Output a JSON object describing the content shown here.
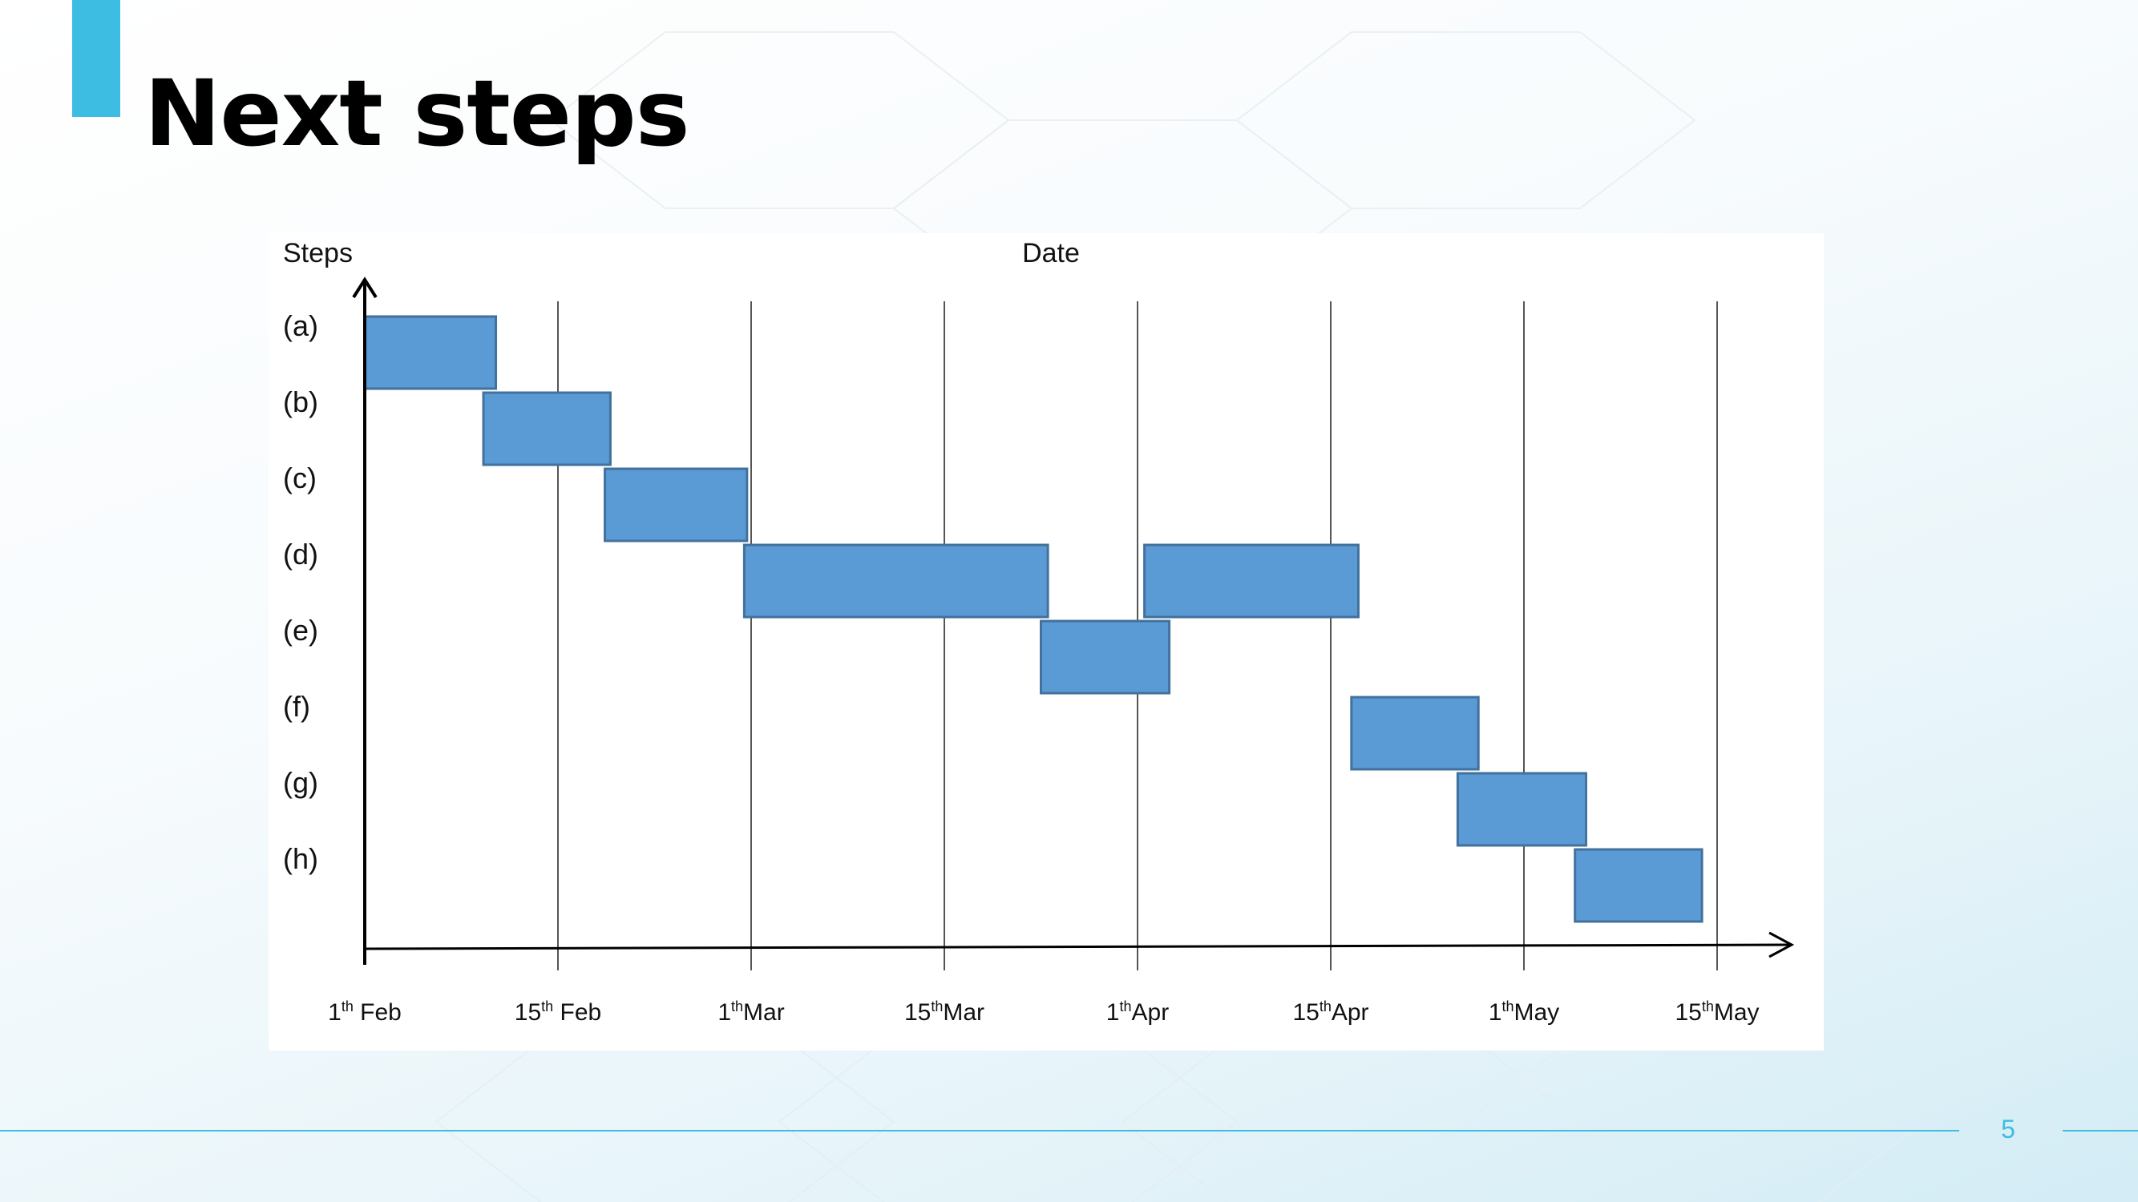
{
  "slide": {
    "title": "Next steps",
    "page_number": "5",
    "accent_color": "#3dbde2"
  },
  "chart_data": {
    "type": "gantt",
    "y_axis_label": "Steps",
    "x_axis_label": "Date",
    "x_ticks": [
      {
        "day": 1,
        "label": "1",
        "sup": "th",
        "suffix": " Feb"
      },
      {
        "day": 15,
        "label": "15",
        "sup": "th",
        "suffix": " Feb"
      },
      {
        "day": 29,
        "label": "1",
        "sup": "th",
        "suffix": "Mar"
      },
      {
        "day": 43,
        "label": "15",
        "sup": "th",
        "suffix": "Mar"
      },
      {
        "day": 57,
        "label": "1",
        "sup": "th",
        "suffix": "Apr"
      },
      {
        "day": 71,
        "label": "15",
        "sup": "th",
        "suffix": "Apr"
      },
      {
        "day": 85,
        "label": "1",
        "sup": "th",
        "suffix": "May"
      },
      {
        "day": 99,
        "label": "15",
        "sup": "th",
        "suffix": "May"
      }
    ],
    "steps": [
      {
        "label": "(a)",
        "segments": [
          {
            "start": 1,
            "end": 10.5
          }
        ]
      },
      {
        "label": "(b)",
        "segments": [
          {
            "start": 9.6,
            "end": 18.8
          }
        ]
      },
      {
        "label": "(c)",
        "segments": [
          {
            "start": 18.4,
            "end": 28.7
          }
        ]
      },
      {
        "label": "(d)",
        "segments": [
          {
            "start": 28.5,
            "end": 50.5
          },
          {
            "start": 57.5,
            "end": 73
          }
        ]
      },
      {
        "label": "(e)",
        "segments": [
          {
            "start": 50,
            "end": 59.3
          }
        ]
      },
      {
        "label": "(f)",
        "segments": [
          {
            "start": 72.5,
            "end": 81.7
          }
        ]
      },
      {
        "label": "(g)",
        "segments": [
          {
            "start": 80.2,
            "end": 89.5
          }
        ]
      },
      {
        "label": "(h)",
        "segments": [
          {
            "start": 88.7,
            "end": 97.9
          }
        ]
      }
    ],
    "bar_color": "#5b9bd5",
    "bar_border": "#41719c"
  }
}
